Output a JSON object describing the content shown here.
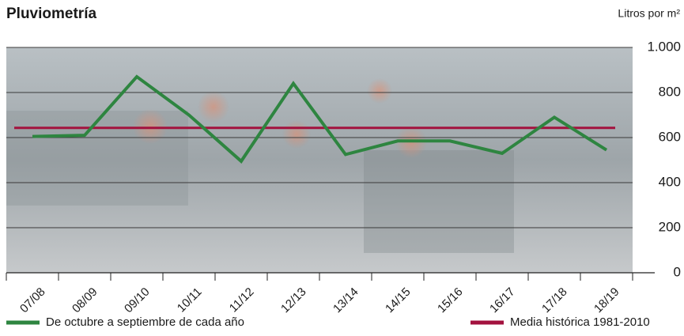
{
  "chart_data": {
    "type": "line",
    "title": "Pluviometría",
    "y_label": "Litros por m²",
    "categories": [
      "07/08",
      "08/09",
      "09/10",
      "10/11",
      "11/12",
      "12/13",
      "13/14",
      "14/15",
      "15/16",
      "16/17",
      "17/18",
      "18/19"
    ],
    "series": [
      {
        "name": "De octubre a septiembre de cada año",
        "color": "#2e8540",
        "values": [
          605,
          610,
          870,
          700,
          495,
          840,
          525,
          585,
          585,
          530,
          690,
          545
        ]
      }
    ],
    "reference_line": {
      "name": "Media histórica 1981-2010",
      "color": "#a3123e",
      "value": 643
    },
    "ylim": [
      0,
      1000
    ],
    "yticks": [
      0,
      200,
      400,
      600,
      800,
      {
        "value": 1000,
        "label": "1.000"
      }
    ],
    "grid": true
  }
}
